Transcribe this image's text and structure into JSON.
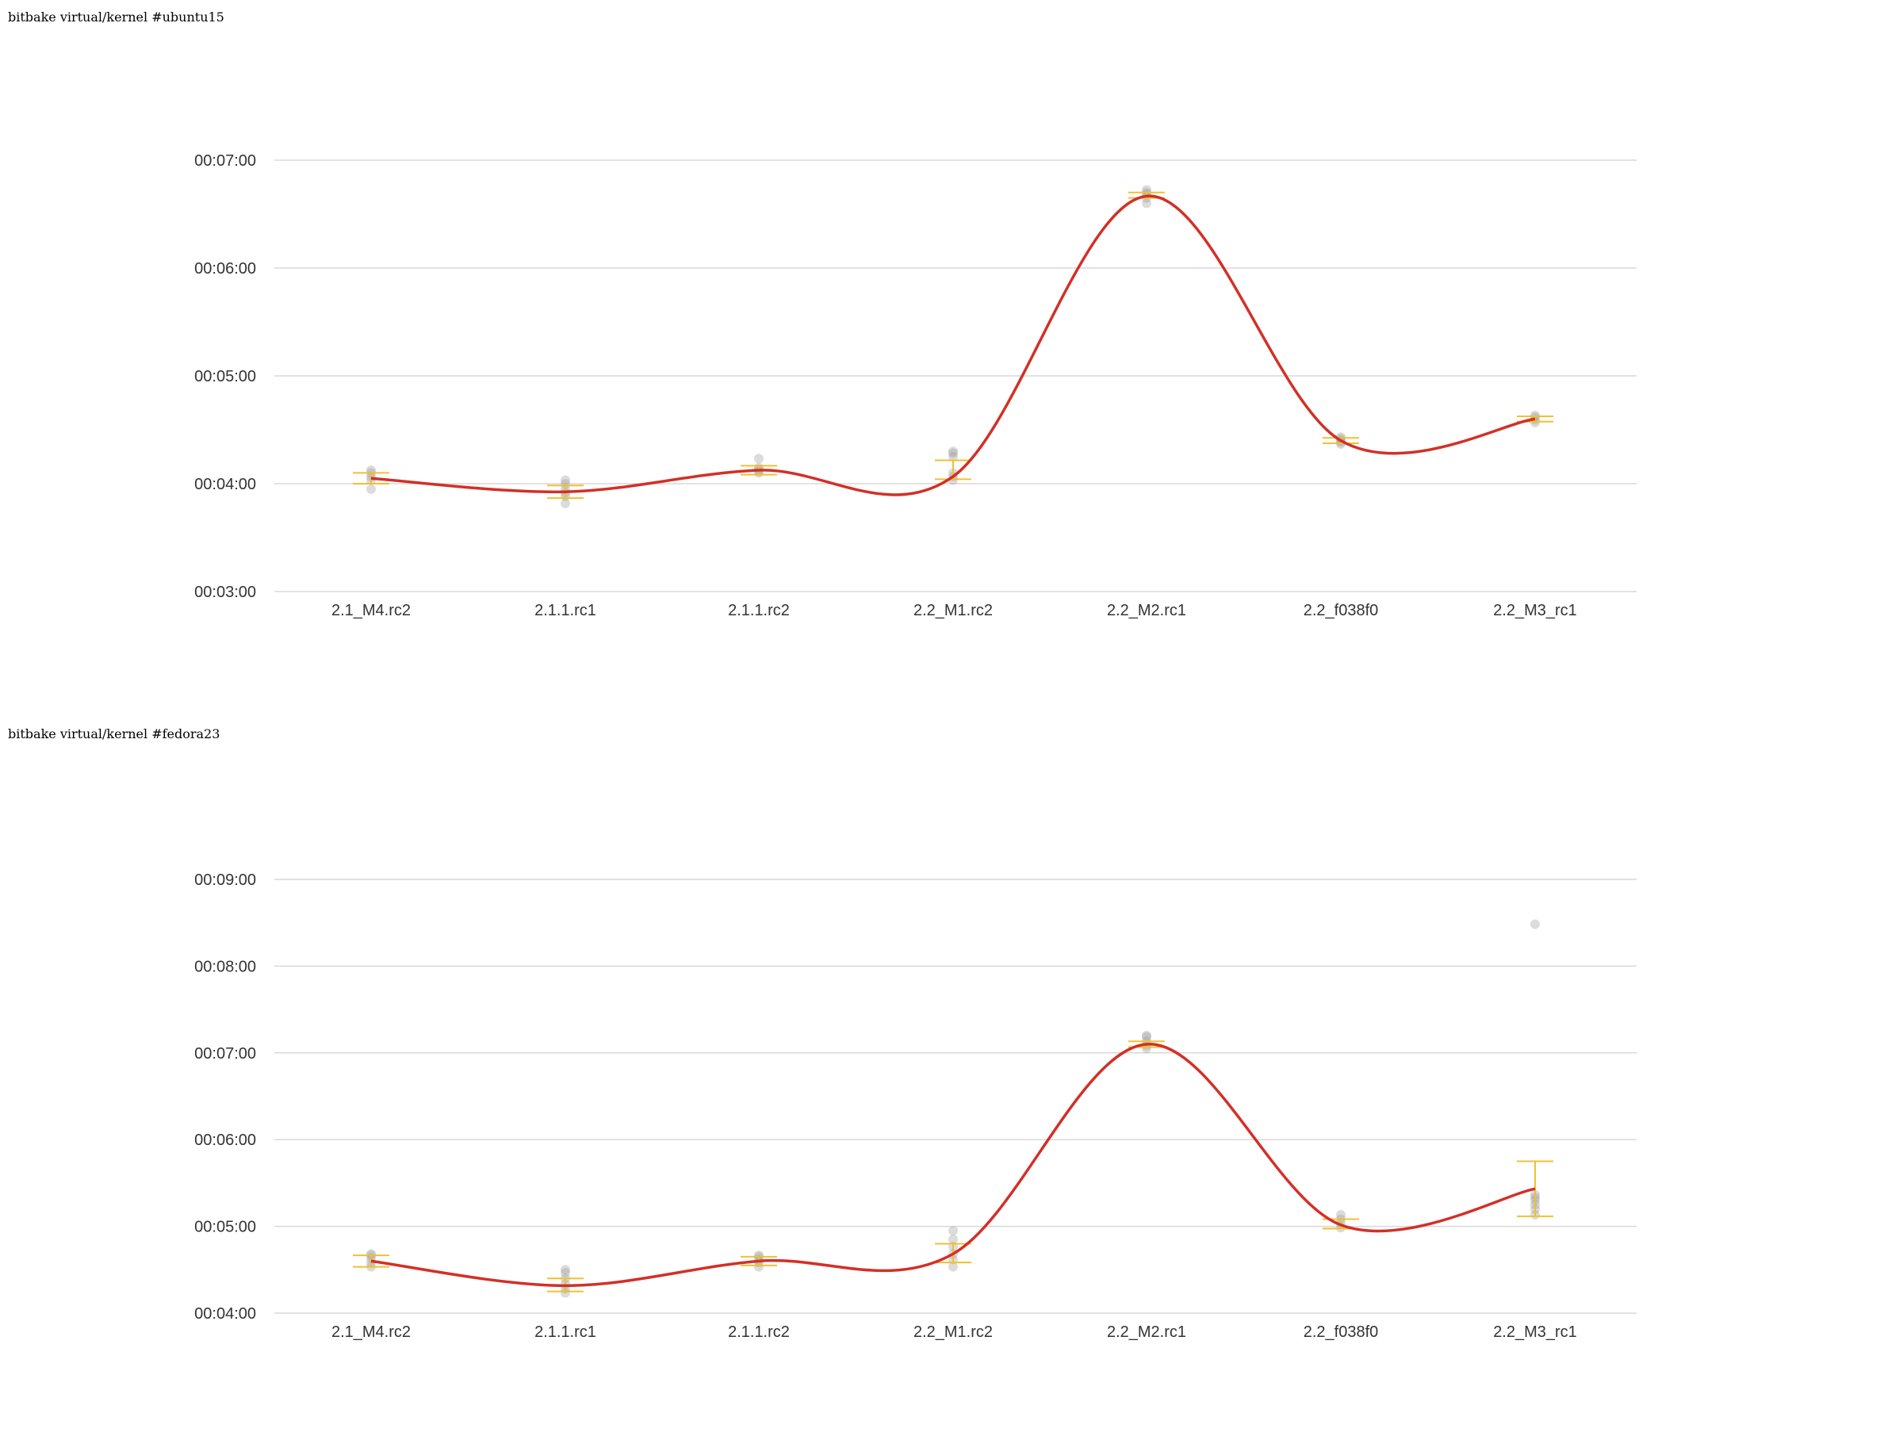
{
  "chart_data": [
    {
      "type": "line",
      "title": "bitbake virtual/kernel #ubuntu15",
      "categories": [
        "2.1_M4.rc2",
        "2.1.1.rc1",
        "2.1.1.rc2",
        "2.2_M1.rc2",
        "2.2_M2.rc1",
        "2.2_f038f0",
        "2.2_M3_rc1"
      ],
      "y_ticks": [
        "00:03:00",
        "00:04:00",
        "00:05:00",
        "00:06:00",
        "00:07:00"
      ],
      "ylim": [
        180,
        420
      ],
      "grid": true,
      "series": [
        {
          "values": [
            243,
            235.5,
            247.5,
            244,
            400,
            264,
            276
          ]
        }
      ],
      "error_bars": [
        {
          "low": 240,
          "high": 246
        },
        {
          "low": 232,
          "high": 239
        },
        {
          "low": 245,
          "high": 250
        },
        {
          "low": 242.5,
          "high": 253
        },
        {
          "low": 399,
          "high": 402
        },
        {
          "low": 262.5,
          "high": 265.5
        },
        {
          "low": 274.5,
          "high": 277.5
        }
      ],
      "samples": [
        [
          242,
          244,
          246,
          247.5,
          237
        ],
        [
          229,
          233,
          235,
          237,
          240,
          242
        ],
        [
          246,
          247,
          248,
          249,
          254
        ],
        [
          242,
          244,
          246,
          255,
          257,
          258
        ],
        [
          396,
          399,
          401,
          402,
          403.5
        ],
        [
          262,
          263,
          264,
          265,
          266
        ],
        [
          274,
          275.5,
          277,
          278
        ]
      ],
      "colors": {
        "line": "#d23027",
        "error_bar": "#f0c030",
        "sample": "#9a9a9a"
      }
    },
    {
      "type": "line",
      "title": "bitbake virtual/kernel #fedora23",
      "categories": [
        "2.1_M4.rc2",
        "2.1.1.rc1",
        "2.1.1.rc2",
        "2.2_M1.rc2",
        "2.2_M2.rc1",
        "2.2_f038f0",
        "2.2_M3_rc1"
      ],
      "y_ticks": [
        "00:04:00",
        "00:05:00",
        "00:06:00",
        "00:07:00",
        "00:08:00",
        "00:09:00"
      ],
      "ylim": [
        240,
        540
      ],
      "grid": true,
      "series": [
        {
          "values": [
            276,
            259,
            276,
            281,
            426,
            301,
            326
          ]
        }
      ],
      "error_bars": [
        {
          "low": 272,
          "high": 280
        },
        {
          "low": 255,
          "high": 264
        },
        {
          "low": 273,
          "high": 279
        },
        {
          "low": 275,
          "high": 288
        },
        {
          "low": 424,
          "high": 428
        },
        {
          "low": 298.5,
          "high": 305
        },
        {
          "low": 307,
          "high": 345
        }
      ],
      "samples": [
        [
          272,
          275,
          278,
          280,
          281
        ],
        [
          254,
          257,
          260,
          264,
          268,
          270
        ],
        [
          272,
          275,
          277,
          279,
          280
        ],
        [
          272,
          277,
          281,
          286,
          291,
          297
        ],
        [
          423,
          425,
          428,
          431,
          432
        ],
        [
          299,
          302,
          305,
          308
        ],
        [
          308,
          312,
          315,
          318,
          320,
          322,
          509
        ]
      ],
      "colors": {
        "line": "#d23027",
        "error_bar": "#f0c030",
        "sample": "#9a9a9a"
      }
    }
  ]
}
